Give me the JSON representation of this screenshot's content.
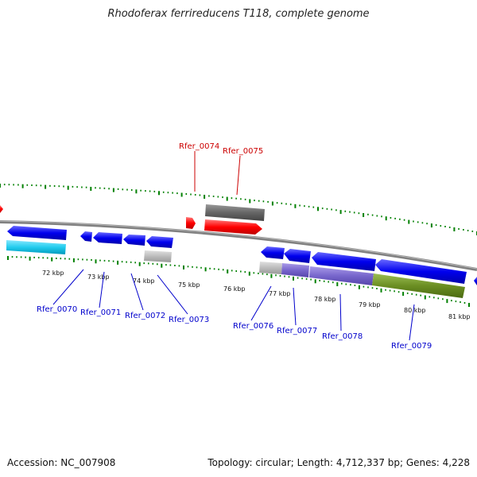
{
  "title": "Rhodoferax ferrireducens T118, complete genome",
  "footer": {
    "accession": "Accession: NC_007908",
    "summary": "Topology: circular; Length: 4,712,337 bp; Genes: 4,228"
  },
  "colors": {
    "backbone": "#808080",
    "tick": "#008000",
    "forward_cds": "#ff0000",
    "forward_rna": "#666666",
    "reverse_cds": "#0000ee",
    "reverse_rna": "#22ccee",
    "pseudo": "#bbbbbb",
    "cog_purple": "#7766cc",
    "cog_olive": "#6b8e23",
    "label_forward": "#cc0000",
    "label_reverse": "#0000cc"
  },
  "scale_labels": [
    "72 kbp",
    "73 kbp",
    "74 kbp",
    "75 kbp",
    "76 kbp",
    "77 kbp",
    "78 kbp",
    "79 kbp",
    "80 kbp",
    "81 kbp"
  ],
  "gene_labels": [
    {
      "text": "Rfer_0074",
      "strand": "forward"
    },
    {
      "text": "Rfer_0075",
      "strand": "forward"
    },
    {
      "text": "Rfer_0070",
      "strand": "reverse"
    },
    {
      "text": "Rfer_0071",
      "strand": "reverse"
    },
    {
      "text": "Rfer_0072",
      "strand": "reverse"
    },
    {
      "text": "Rfer_0073",
      "strand": "reverse"
    },
    {
      "text": "Rfer_0076",
      "strand": "reverse"
    },
    {
      "text": "Rfer_0077",
      "strand": "reverse"
    },
    {
      "text": "Rfer_0078",
      "strand": "reverse"
    },
    {
      "text": "Rfer_0079",
      "strand": "reverse"
    }
  ]
}
